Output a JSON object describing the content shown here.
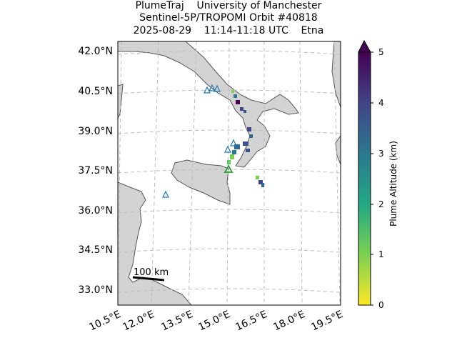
{
  "title": {
    "line1": "PlumeTraj    University of Manchester",
    "line2": "Sentinel-5P/TROPOMI Orbit #40818",
    "line3": "2025-08-29    11:14-11:18 UTC    Etna"
  },
  "map": {
    "lat_labels": [
      "42.0°N",
      "40.5°N",
      "39.0°N",
      "37.5°N",
      "36.0°N",
      "34.5°N",
      "33.0°N"
    ],
    "lon_labels": [
      "10.5°E",
      "12.0°E",
      "13.5°E",
      "15.0°E",
      "16.5°E",
      "18.0°E",
      "19.5°E"
    ],
    "scale_bar_label": "100 km",
    "land_color": "#d3d3d3",
    "grid": true
  },
  "colorbar": {
    "label": "Plume Altitude (km)",
    "ticks": [
      "0",
      "1",
      "2",
      "3",
      "4",
      "5"
    ],
    "colormap": "viridis_r",
    "extend": "max"
  }
}
